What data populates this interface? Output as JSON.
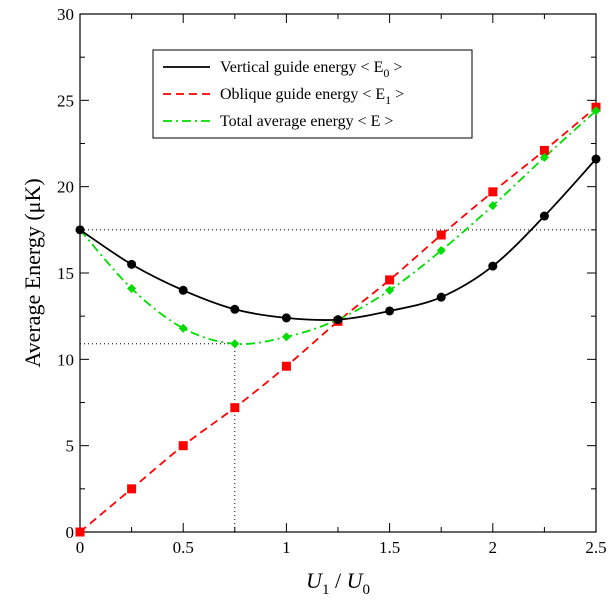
{
  "chart_data": {
    "type": "line",
    "xlabel": {
      "main": "U",
      "sub1": "1",
      "slash": " / ",
      "main2": "U",
      "sub2": "0"
    },
    "ylabel": "Average Energy (μK)",
    "xlim": [
      0,
      2.5
    ],
    "ylim": [
      0,
      30
    ],
    "x_ticks": [
      "0",
      "0.5",
      "1",
      "1.5",
      "2",
      "2.5"
    ],
    "y_ticks": [
      "0",
      "5",
      "10",
      "15",
      "20",
      "25",
      "30"
    ],
    "grid": false,
    "legend_position": "top-center",
    "series": [
      {
        "name": "Vertical guide energy <E0>",
        "legend_text": "Vertical guide energy < E",
        "legend_sub": "0",
        "legend_close": " >",
        "color": "#000000",
        "dash": "solid",
        "marker": "circle",
        "x": [
          0,
          0.25,
          0.5,
          0.75,
          1.0,
          1.25,
          1.5,
          1.75,
          2.0,
          2.25,
          2.5
        ],
        "values": [
          17.5,
          15.5,
          14.0,
          12.9,
          12.4,
          12.3,
          12.8,
          13.6,
          15.4,
          18.3,
          21.6
        ]
      },
      {
        "name": "Oblique guide energy <E1>",
        "legend_text": "Oblique guide energy < E",
        "legend_sub": "1",
        "legend_close": " >",
        "color": "#ff0000",
        "dash": "dashed",
        "marker": "square",
        "x": [
          0,
          0.25,
          0.5,
          0.75,
          1.0,
          1.25,
          1.5,
          1.75,
          2.0,
          2.25,
          2.5
        ],
        "values": [
          0.0,
          2.5,
          5.0,
          7.2,
          9.6,
          12.2,
          14.6,
          17.2,
          19.7,
          22.1,
          24.6
        ]
      },
      {
        "name": "Total average energy <E>",
        "legend_text": "Total  average energy  < E >",
        "legend_sub": "",
        "legend_close": "",
        "color": "#00dd00",
        "dash": "dash-dot",
        "marker": "diamond",
        "x": [
          0,
          0.25,
          0.5,
          0.75,
          1.0,
          1.25,
          1.5,
          1.75,
          2.0,
          2.25,
          2.5
        ],
        "values": [
          17.5,
          14.1,
          11.8,
          10.9,
          11.3,
          12.3,
          14.0,
          16.3,
          18.9,
          21.7,
          24.4
        ]
      }
    ],
    "reference_lines": [
      {
        "orientation": "horizontal",
        "y": 17.5,
        "x_start": 0,
        "x_end": 2.5
      },
      {
        "orientation": "horizontal",
        "y": 10.9,
        "x_start": 0,
        "x_end": 0.75
      },
      {
        "orientation": "vertical",
        "x": 0.75,
        "y_start": 0,
        "y_end": 10.9
      }
    ]
  }
}
